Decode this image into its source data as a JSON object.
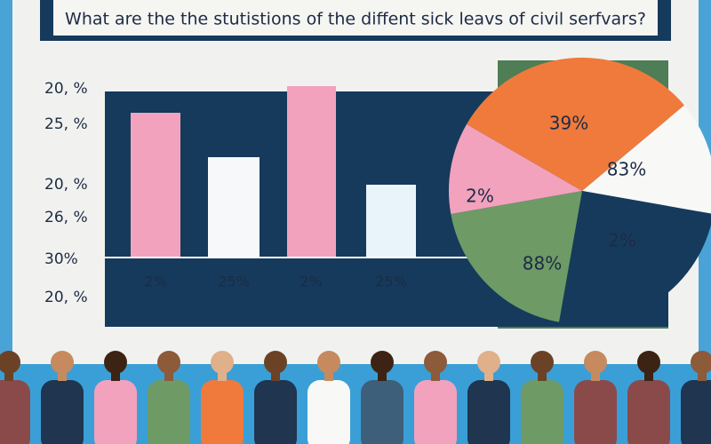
{
  "header": {
    "title": "What  are the the  stutistions of the diffent sick   leavs of civil serfvars?"
  },
  "left_labels": [
    "20, %",
    "25, %",
    "20, %",
    "26, %",
    "30%",
    "20, %"
  ],
  "bar_labels": [
    "2%",
    "25%",
    "2%",
    "25%"
  ],
  "pie_labels": [
    "39%",
    "83%",
    "2%",
    "2%",
    "88%"
  ]
}
